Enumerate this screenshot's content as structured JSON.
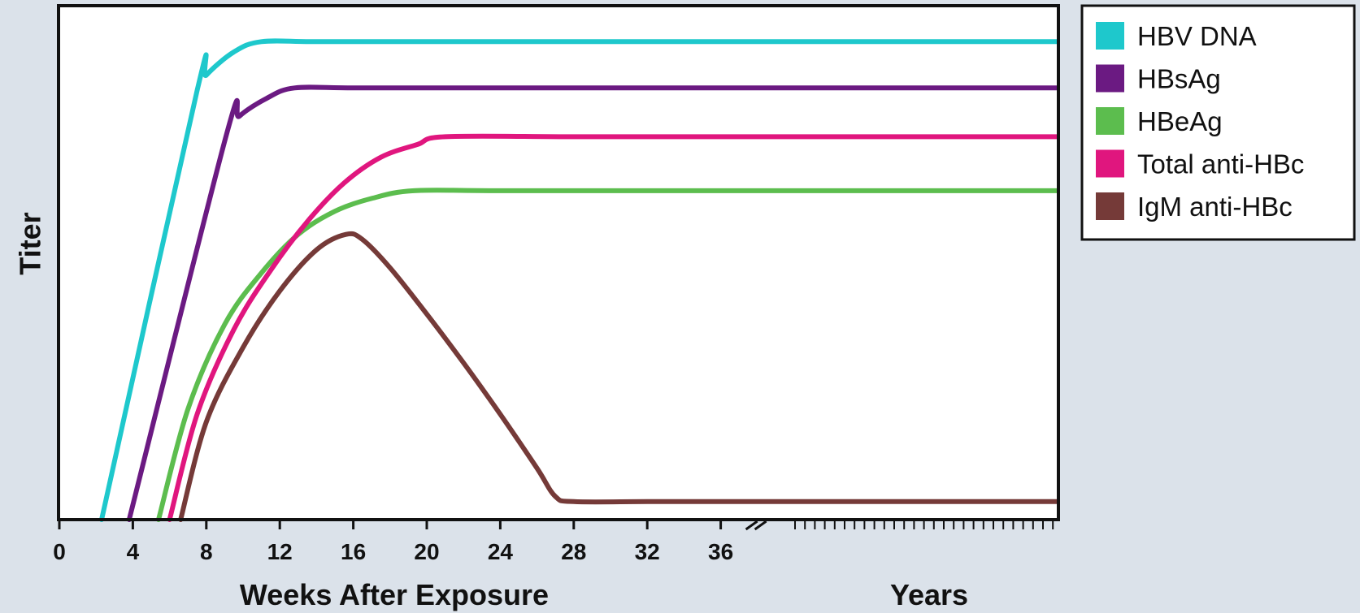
{
  "chart_data": {
    "type": "line",
    "xlabel": "Weeks After Exposure",
    "xlabel_secondary": "Years",
    "ylabel": "Titer",
    "x_ticks": [
      "0",
      "4",
      "8",
      "12",
      "16",
      "20",
      "24",
      "28",
      "32",
      "36"
    ],
    "x_tick_values": [
      0,
      4,
      8,
      12,
      16,
      20,
      24,
      28,
      32,
      36
    ],
    "xlim_weeks": [
      0,
      36
    ],
    "axis_break_after_weeks": 36,
    "ylim": [
      0,
      100
    ],
    "grid": false,
    "legend_position": "right-top",
    "series": [
      {
        "name": "HBV DNA",
        "color": "#1ec8cc",
        "x": [
          2.3,
          7.5,
          8.0,
          9.5,
          11.0,
          14,
          20,
          30,
          36,
          "years"
        ],
        "y": [
          0,
          83.5,
          86.5,
          91.0,
          93.0,
          93.0,
          93.0,
          93.0,
          93.0,
          93.0
        ]
      },
      {
        "name": "HBsAg",
        "color": "#6b1a82",
        "x": [
          3.8,
          9.1,
          9.8,
          11.3,
          12.8,
          16,
          22,
          30,
          36,
          "years"
        ],
        "y": [
          0,
          75,
          78.5,
          82.0,
          84.0,
          84.0,
          84.0,
          84.0,
          84.0,
          84.0
        ]
      },
      {
        "name": "HBeAg",
        "color": "#5cbd4e",
        "x": [
          5.4,
          7.0,
          9.0,
          11.0,
          13.0,
          15.0,
          17.0,
          19.3,
          24,
          36,
          "years"
        ],
        "y": [
          0,
          21.5,
          38.0,
          48.0,
          55.5,
          60.0,
          62.5,
          64.0,
          64.0,
          64.0,
          64.0
        ]
      },
      {
        "name": "Total anti-HBc",
        "color": "#e0167e",
        "x": [
          6.0,
          7.5,
          9.5,
          11.5,
          13.5,
          15.5,
          17.5,
          19.5,
          21.0,
          28,
          36,
          "years"
        ],
        "y": [
          0,
          20.5,
          37.0,
          48.5,
          58.0,
          65.5,
          70.5,
          73.0,
          74.5,
          74.5,
          74.5,
          74.5
        ]
      },
      {
        "name": "IgM anti-HBc",
        "color": "#753a38",
        "x": [
          6.6,
          8.0,
          10.0,
          12.0,
          14.0,
          15.6,
          16.5,
          18.0,
          20.0,
          22.0,
          24.0,
          26.0,
          27.0,
          28.0,
          32,
          36,
          "years"
        ],
        "y": [
          0,
          19.0,
          33.5,
          44.5,
          52.5,
          55.5,
          54.5,
          49.0,
          40.0,
          30.5,
          20.5,
          10.0,
          4.5,
          3.5,
          3.5,
          3.5,
          3.5
        ]
      }
    ]
  }
}
